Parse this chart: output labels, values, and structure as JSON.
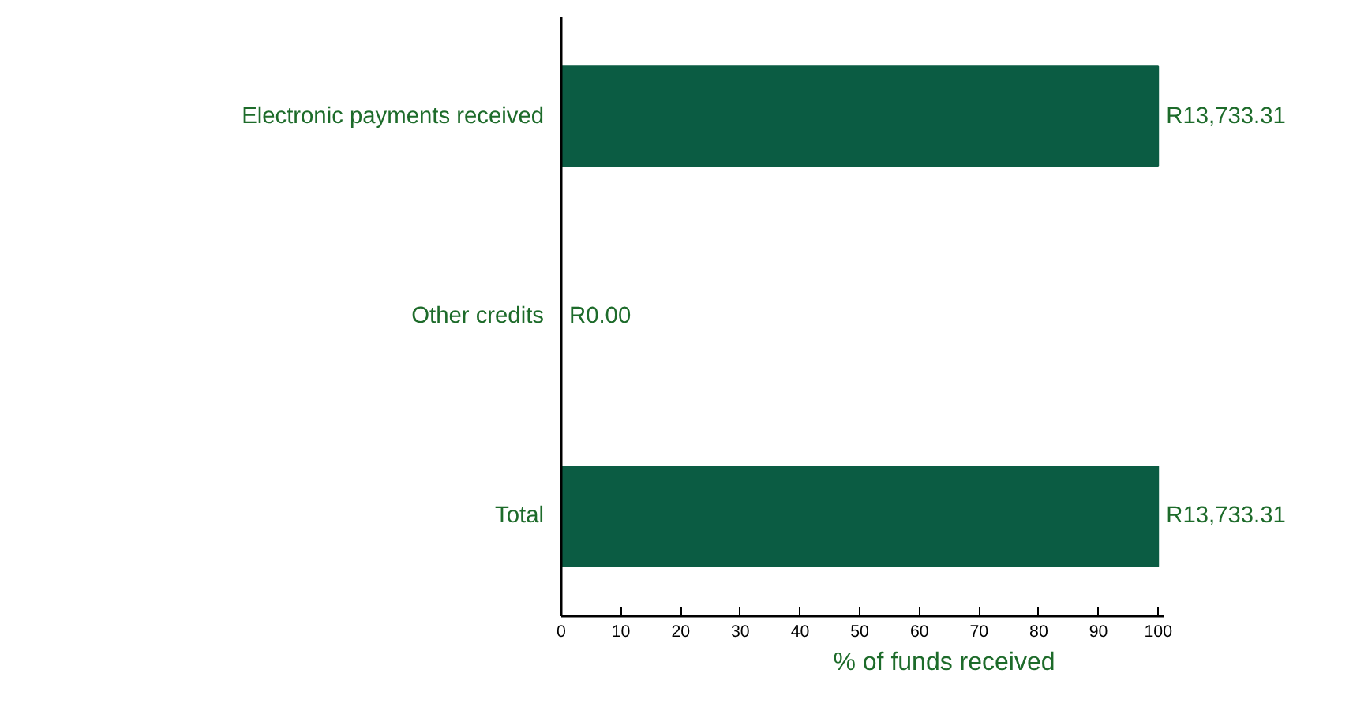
{
  "chart_data": {
    "type": "bar",
    "orientation": "horizontal",
    "categories": [
      "Electronic payments received",
      "Other credits",
      "Total"
    ],
    "values": [
      100,
      0,
      100
    ],
    "value_labels": [
      "R13,733.31",
      "R0.00",
      "R13,733.31"
    ],
    "color": "#0b5c43",
    "xlabel": "% of funds received",
    "xlim": [
      0,
      101
    ],
    "xticks": [
      0,
      10,
      20,
      30,
      40,
      50,
      60,
      70,
      80,
      90,
      100
    ],
    "grid": false
  }
}
